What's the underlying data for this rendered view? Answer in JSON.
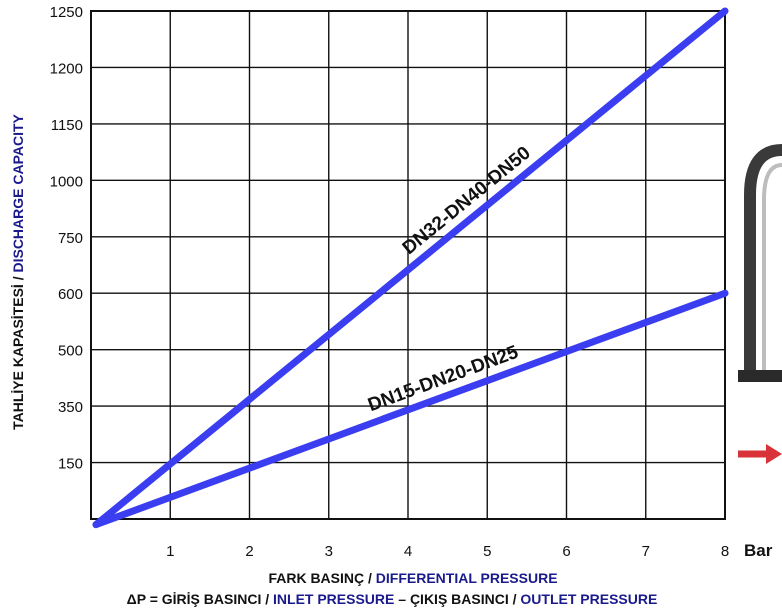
{
  "chart_data": {
    "type": "line",
    "ylabel": {
      "part1": "TAHLİYE KAPASİTESİ / ",
      "part2": "DISCHARGE CAPACITY"
    },
    "xlabel": {
      "part1": "FARK BASINÇ / ",
      "part2": "DIFFERENTIAL PRESSURE"
    },
    "formula": {
      "p1": "ΔP = GİRİŞ BASINCI / ",
      "p2": "INLET PRESSURE",
      "p3": " – ÇIKIŞ BASINCI / ",
      "p4": "OUTLET PRESSURE"
    },
    "x_ticks": [
      "1",
      "2",
      "3",
      "4",
      "5",
      "6",
      "7",
      "8"
    ],
    "x_unit": "Bar",
    "y_ticks": [
      "150",
      "350",
      "500",
      "600",
      "750",
      "1000",
      "1150",
      "1200",
      "1250"
    ],
    "xlim": [
      0,
      8
    ],
    "series": [
      {
        "name": "DN32-DN40-DN50",
        "x": [
          0,
          8
        ],
        "y_at_ticks": [
          0,
          1250
        ]
      },
      {
        "name": "DN15-DN20-DN25",
        "x": [
          0,
          8
        ],
        "y_at_ticks": [
          0,
          600
        ]
      }
    ],
    "series_color": "#3a3df0",
    "accent_color": "#1a1a8c",
    "grid": true
  }
}
